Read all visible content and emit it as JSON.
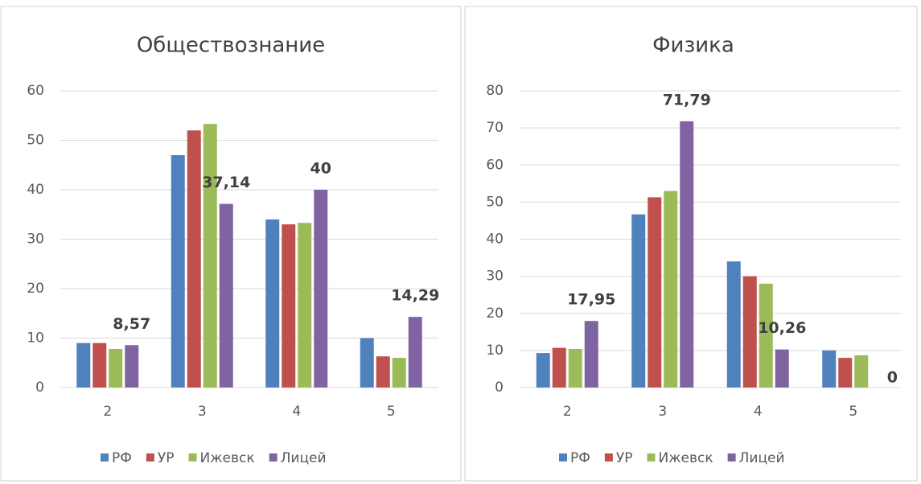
{
  "chart_data": [
    {
      "type": "bar",
      "title": "Обществознание",
      "categories": [
        "2",
        "3",
        "4",
        "5"
      ],
      "series": [
        {
          "name": "РФ",
          "color": "#4f81bd",
          "values": [
            9,
            47,
            34,
            10
          ]
        },
        {
          "name": "УР",
          "color": "#c0504d",
          "values": [
            9,
            52,
            33,
            6.3
          ]
        },
        {
          "name": "Ижевск",
          "color": "#9bbb59",
          "values": [
            7.8,
            53.3,
            33.3,
            6
          ]
        },
        {
          "name": "Лицей",
          "color": "#8064a2",
          "values": [
            8.57,
            37.14,
            40,
            14.29
          ],
          "value_labels": [
            "8,57",
            "37,14",
            "40",
            "14,29"
          ]
        }
      ],
      "ylim": [
        0,
        60
      ],
      "yticks": [
        0,
        10,
        20,
        30,
        40,
        50,
        60
      ],
      "grid": true,
      "legend": "bottom"
    },
    {
      "type": "bar",
      "title": "Физика",
      "categories": [
        "2",
        "3",
        "4",
        "5"
      ],
      "series": [
        {
          "name": "РФ",
          "color": "#4f81bd",
          "values": [
            9.3,
            46.7,
            34,
            10
          ]
        },
        {
          "name": "УР",
          "color": "#c0504d",
          "values": [
            10.7,
            51.3,
            30,
            8
          ]
        },
        {
          "name": "Ижевск",
          "color": "#9bbb59",
          "values": [
            10.4,
            53,
            28,
            8.7
          ]
        },
        {
          "name": "Лицей",
          "color": "#8064a2",
          "values": [
            17.95,
            71.79,
            10.26,
            0
          ],
          "value_labels": [
            "17,95",
            "71,79",
            "10,26",
            "0"
          ]
        }
      ],
      "ylim": [
        0,
        80
      ],
      "yticks": [
        0,
        10,
        20,
        30,
        40,
        50,
        60,
        70,
        80
      ],
      "grid": true,
      "legend": "bottom"
    }
  ]
}
